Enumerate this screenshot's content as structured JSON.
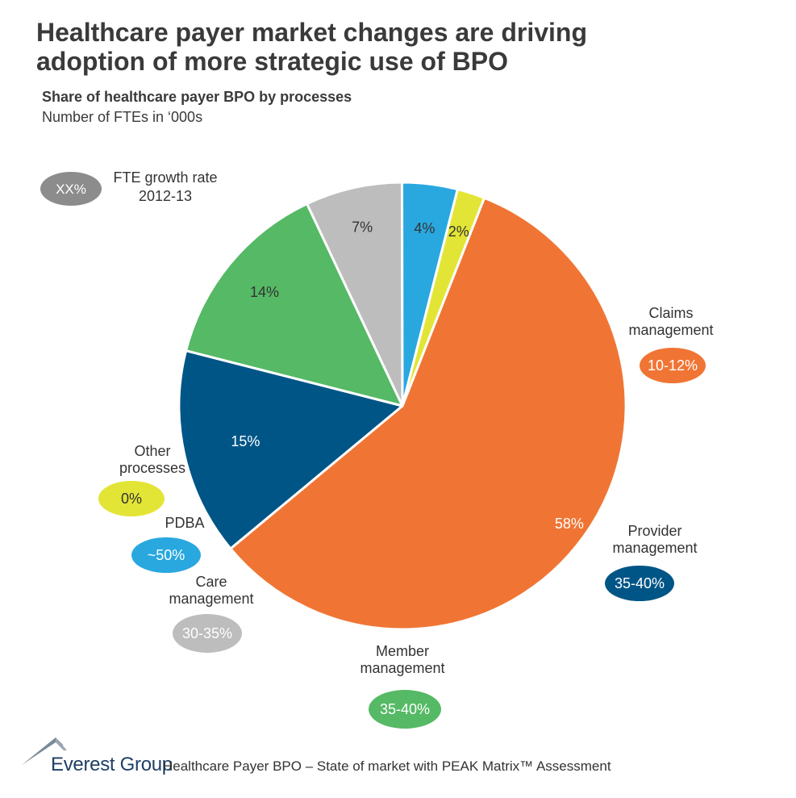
{
  "title_line1": "Healthcare payer market changes are driving",
  "title_line2": "adoption of more strategic use of BPO",
  "subtitle": "Share of healthcare payer BPO by processes",
  "unit_label": "Number of FTEs in ‘000s",
  "legend": {
    "badge": "XX%",
    "text_line1": "FTE growth rate",
    "text_line2": "2012-13",
    "badge_color": "#8c8c8c"
  },
  "chart_data": {
    "type": "pie",
    "series_name": "",
    "slices": [
      {
        "label_lines": [
          "Claims",
          "management"
        ],
        "value": 58,
        "value_label": "58%",
        "growth": "10-12%",
        "color": "#f07534"
      },
      {
        "label_lines": [
          "Provider",
          "management"
        ],
        "value": 15,
        "value_label": "15%",
        "growth": "35-40%",
        "color": "#005587"
      },
      {
        "label_lines": [
          "Member",
          "management"
        ],
        "value": 14,
        "value_label": "14%",
        "growth": "35-40%",
        "color": "#55b965"
      },
      {
        "label_lines": [
          "Care",
          "management"
        ],
        "value": 7,
        "value_label": "7%",
        "growth": "30-35%",
        "color": "#bdbdbd"
      },
      {
        "label_lines": [
          "PDBA"
        ],
        "value": 4,
        "value_label": "4%",
        "growth": "~50%",
        "color": "#29a8e0"
      },
      {
        "label_lines": [
          "Other",
          "processes"
        ],
        "value": 2,
        "value_label": "2%",
        "growth": "0%",
        "color": "#e3e536"
      }
    ]
  },
  "footer": {
    "logo": "Everest Group",
    "text": "Healthcare Payer BPO – State of market with PEAK Matrix™ Assessment"
  }
}
